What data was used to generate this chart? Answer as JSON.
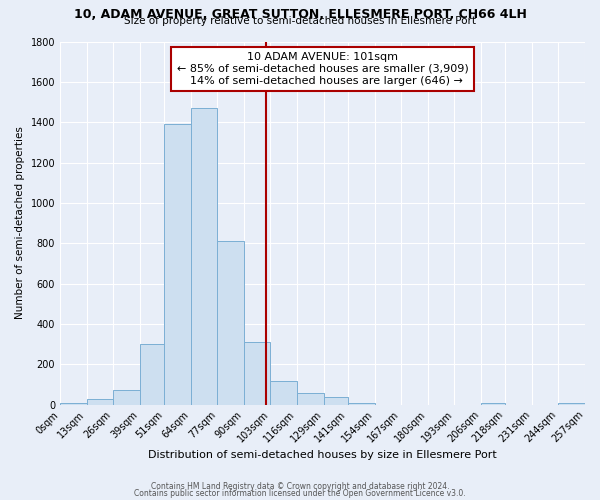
{
  "title": "10, ADAM AVENUE, GREAT SUTTON, ELLESMERE PORT, CH66 4LH",
  "subtitle": "Size of property relative to semi-detached houses in Ellesmere Port",
  "xlabel": "Distribution of semi-detached houses by size in Ellesmere Port",
  "ylabel": "Number of semi-detached properties",
  "footer_line1": "Contains HM Land Registry data © Crown copyright and database right 2024.",
  "footer_line2": "Contains public sector information licensed under the Open Government Licence v3.0.",
  "property_label": "10 ADAM AVENUE: 101sqm",
  "pct_smaller": 85,
  "num_smaller": 3909,
  "pct_larger": 14,
  "num_larger": 646,
  "bin_edges": [
    0,
    13,
    26,
    39,
    51,
    64,
    77,
    90,
    103,
    116,
    129,
    141,
    154,
    167,
    180,
    193,
    206,
    218,
    231,
    244,
    257
  ],
  "bin_counts": [
    10,
    30,
    70,
    300,
    1390,
    1470,
    810,
    310,
    115,
    55,
    40,
    10,
    0,
    0,
    0,
    0,
    10,
    0,
    0,
    10
  ],
  "bar_facecolor": "#cddff0",
  "bar_edgecolor": "#7bafd4",
  "vline_color": "#aa0000",
  "vline_x": 101,
  "annotation_box_edgecolor": "#aa0000",
  "annotation_box_facecolor": "#ffffff",
  "background_color": "#e8eef8",
  "plot_bg_color": "#e8eef8",
  "grid_color": "#ffffff",
  "ylim": [
    0,
    1800
  ],
  "yticks": [
    0,
    200,
    400,
    600,
    800,
    1000,
    1200,
    1400,
    1600,
    1800
  ],
  "tick_labels": [
    "0sqm",
    "13sqm",
    "26sqm",
    "39sqm",
    "51sqm",
    "64sqm",
    "77sqm",
    "90sqm",
    "103sqm",
    "116sqm",
    "129sqm",
    "141sqm",
    "154sqm",
    "167sqm",
    "180sqm",
    "193sqm",
    "206sqm",
    "218sqm",
    "231sqm",
    "244sqm",
    "257sqm"
  ]
}
